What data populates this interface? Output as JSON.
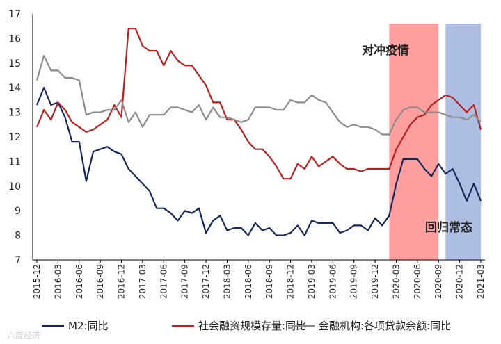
{
  "chart_data": {
    "type": "line",
    "title": "",
    "xlabel": "",
    "ylabel": "",
    "ylim": [
      7,
      17
    ],
    "yticks": [
      "7",
      "8",
      "9",
      "10",
      "11",
      "12",
      "13",
      "14",
      "15",
      "16",
      "17"
    ],
    "x_tick_labels": [
      "2015-12",
      "2016-03",
      "2016-06",
      "2016-09",
      "2016-12",
      "2017-03",
      "2017-06",
      "2017-09",
      "2017-12",
      "2018-03",
      "2018-06",
      "2018-09",
      "2018-12",
      "2019-03",
      "2019-06",
      "2019-09",
      "2019-12",
      "2020-03",
      "2020-06",
      "2020-09",
      "2020-12",
      "2021-03"
    ],
    "grid": false,
    "legend_position": "bottom",
    "shaded_regions": [
      {
        "label": "对冲疫情",
        "start": "2020-02",
        "end": "2020-09",
        "color": "#ff9e9e"
      },
      {
        "label": "回归常态",
        "start": "2020-10",
        "end": "2021-03",
        "color": "#aebde2"
      }
    ],
    "series": [
      {
        "name": "M2:同比",
        "color": "#14285a",
        "values": [
          13.3,
          14.0,
          13.3,
          13.4,
          12.8,
          11.8,
          11.8,
          10.2,
          11.4,
          11.5,
          11.6,
          11.4,
          11.3,
          10.7,
          10.4,
          10.1,
          9.8,
          9.1,
          9.1,
          8.9,
          8.6,
          9.0,
          8.9,
          9.1,
          8.1,
          8.6,
          8.8,
          8.2,
          8.3,
          8.3,
          8.0,
          8.5,
          8.2,
          8.3,
          8.0,
          8.0,
          8.1,
          8.4,
          8.0,
          8.6,
          8.5,
          8.5,
          8.5,
          8.1,
          8.2,
          8.4,
          8.4,
          8.2,
          8.7,
          8.4,
          8.8,
          10.1,
          11.1,
          11.1,
          11.1,
          10.7,
          10.4,
          10.9,
          10.5,
          10.7,
          10.1,
          9.4,
          10.1,
          9.4
        ]
      },
      {
        "name": "社会融资规模存量:同比",
        "color": "#b81f1f",
        "values": [
          12.4,
          13.1,
          12.7,
          13.4,
          13.1,
          12.6,
          12.4,
          12.2,
          12.3,
          12.5,
          12.7,
          13.3,
          12.8,
          16.4,
          16.4,
          15.7,
          15.5,
          15.5,
          14.9,
          15.5,
          15.1,
          14.9,
          14.9,
          14.5,
          14.1,
          13.4,
          13.4,
          12.7,
          12.7,
          12.3,
          11.8,
          11.5,
          11.5,
          11.2,
          10.8,
          10.3,
          10.3,
          10.9,
          10.7,
          11.2,
          10.8,
          11.0,
          11.2,
          10.9,
          10.7,
          10.7,
          10.6,
          10.7,
          10.7,
          10.7,
          10.7,
          11.5,
          12.0,
          12.5,
          12.8,
          12.9,
          13.3,
          13.5,
          13.7,
          13.6,
          13.3,
          13.0,
          13.3,
          12.3
        ]
      },
      {
        "name": "金融机构:各项贷款余额:同比",
        "color": "#8c8c8c",
        "values": [
          14.3,
          15.3,
          14.7,
          14.7,
          14.4,
          14.4,
          14.3,
          12.9,
          13.0,
          13.0,
          13.1,
          13.1,
          13.5,
          12.6,
          13.0,
          12.4,
          12.9,
          12.9,
          12.9,
          13.2,
          13.2,
          13.1,
          13.0,
          13.3,
          12.7,
          13.2,
          12.8,
          12.8,
          12.7,
          12.6,
          12.7,
          13.2,
          13.2,
          13.2,
          13.1,
          13.1,
          13.5,
          13.4,
          13.4,
          13.7,
          13.5,
          13.4,
          13.0,
          12.6,
          12.4,
          12.5,
          12.4,
          12.4,
          12.3,
          12.1,
          12.1,
          12.7,
          13.1,
          13.2,
          13.2,
          13.0,
          13.0,
          13.0,
          12.9,
          12.8,
          12.8,
          12.7,
          12.9,
          12.6
        ]
      }
    ],
    "annotations": [
      "对冲疫情",
      "回归常态"
    ]
  },
  "watermark": "六度经济"
}
